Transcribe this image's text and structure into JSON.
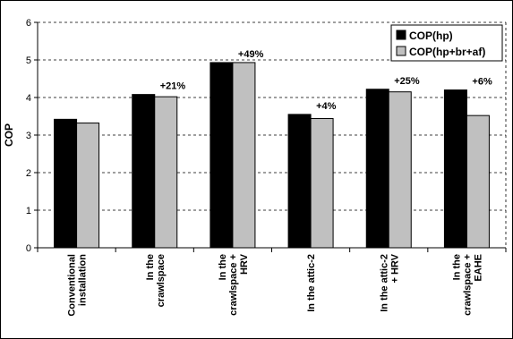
{
  "chart_data": {
    "type": "bar",
    "title": "",
    "xlabel": "",
    "ylabel": "COP",
    "ylim": [
      0,
      6
    ],
    "yticks": [
      0,
      1,
      2,
      3,
      4,
      5,
      6
    ],
    "grid": true,
    "legend_position": "top-right",
    "categories": [
      [
        "Conventional",
        "installation"
      ],
      [
        "In the",
        "crawlspace"
      ],
      [
        "In the",
        "crawlspace +",
        "HRV"
      ],
      [
        "In the attic-2"
      ],
      [
        "In the attic-2",
        "+ HRV"
      ],
      [
        "In the",
        "crawlspace +",
        "EAHE"
      ]
    ],
    "series": [
      {
        "name": "COP(hp)",
        "color": "#000000",
        "values": [
          3.42,
          4.08,
          4.93,
          3.55,
          4.22,
          4.2
        ]
      },
      {
        "name": "COP(hp+br+af)",
        "color": "#c0c0c0",
        "values": [
          3.32,
          4.02,
          4.93,
          3.44,
          4.15,
          3.52
        ]
      }
    ],
    "annotations": [
      "",
      "+21%",
      "+49%",
      "+4%",
      "+25%",
      "+6%"
    ]
  }
}
